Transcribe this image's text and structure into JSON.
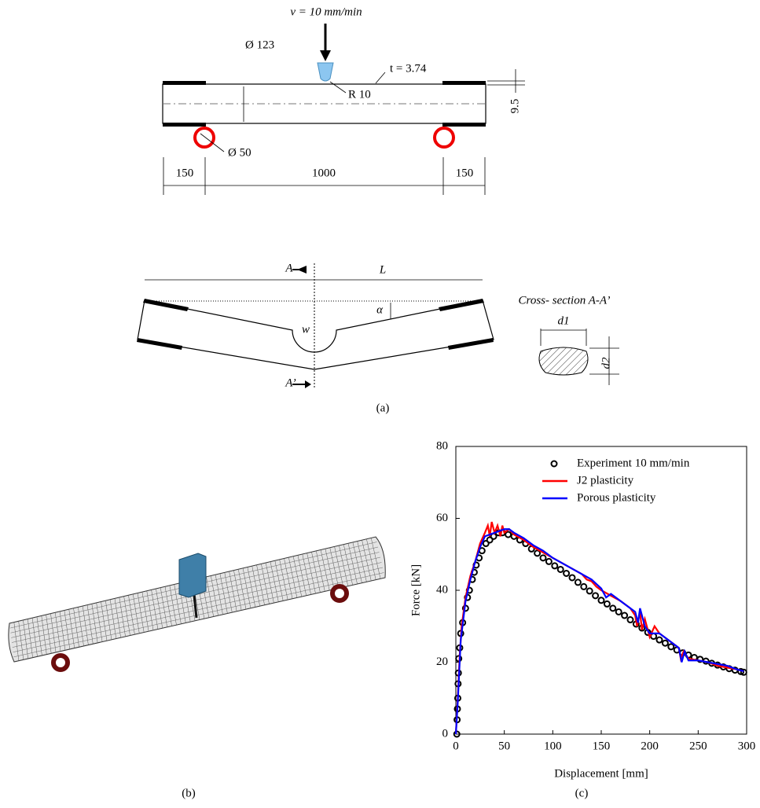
{
  "panel_a": {
    "velocity": "v = 10 mm/min",
    "outer_diameter": "Ø 123",
    "thickness": "t = 3.74",
    "indenter_radius": "R 10",
    "plate_height": "9.5",
    "support_diameter": "Ø 50",
    "left_overhang": "150",
    "span": "1000",
    "right_overhang": "150",
    "section_top": "A",
    "length": "L",
    "width": "w",
    "angle": "α",
    "section_bottom": "A’",
    "cross_section_title": "Cross- section A-A’",
    "d1": "d1",
    "d2": "d2",
    "label": "(a)"
  },
  "panel_b": {
    "label": "(b)"
  },
  "panel_c": {
    "label": "(c)"
  },
  "chart_data": {
    "type": "line",
    "xlabel": "Displacement [mm]",
    "ylabel": "Force [kN]",
    "xlim": [
      0,
      300
    ],
    "ylim": [
      0,
      80
    ],
    "xticks": [
      0,
      50,
      100,
      150,
      200,
      250,
      300
    ],
    "yticks": [
      0,
      20,
      40,
      60,
      80
    ],
    "legend": "upper right",
    "series": [
      {
        "name": "Experiment 10 mm/min",
        "style": "markers",
        "color": "#000000",
        "x": [
          1,
          1.3,
          1.6,
          2,
          2.3,
          2.6,
          3,
          4,
          5,
          7,
          10,
          12,
          14,
          17,
          19,
          21,
          24,
          27,
          31,
          35,
          39,
          44,
          48,
          54,
          60,
          66,
          72,
          78,
          84,
          90,
          96,
          102,
          108,
          114,
          120,
          126,
          132,
          138,
          144,
          150,
          156,
          162,
          168,
          174,
          180,
          186,
          192,
          198,
          204,
          210,
          216,
          222,
          228,
          234,
          240,
          246,
          252,
          258,
          264,
          270,
          276,
          282,
          288,
          294,
          297
        ],
        "values": [
          0,
          4,
          7,
          10,
          14,
          17,
          21,
          24,
          28,
          31,
          35,
          38,
          40,
          43,
          45,
          47,
          49,
          51,
          53,
          54,
          55,
          56,
          56,
          55.5,
          55,
          54,
          53,
          51.5,
          50.3,
          49,
          48,
          46.8,
          45.8,
          44.7,
          43.5,
          42.2,
          41,
          39.8,
          38.5,
          37.2,
          36.2,
          35,
          34,
          33,
          31.8,
          30.6,
          29.5,
          28.3,
          27.2,
          26.2,
          25.3,
          24.3,
          23.4,
          22.6,
          22,
          21.3,
          20.8,
          20.3,
          19.7,
          19.2,
          18.7,
          18.2,
          17.8,
          17.4,
          17.2
        ]
      },
      {
        "name": "J2 plasticity",
        "style": "line",
        "color": "#ff0000",
        "x": [
          0,
          2,
          4,
          6,
          10,
          15,
          20,
          25,
          30,
          33,
          35,
          37,
          40,
          43,
          46,
          48,
          50,
          55,
          60,
          70,
          80,
          90,
          100,
          110,
          120,
          130,
          135,
          140,
          145,
          150,
          160,
          170,
          180,
          185,
          187,
          190,
          192,
          195,
          200,
          205,
          210,
          220,
          230,
          232,
          235,
          240,
          250,
          260,
          270,
          280,
          290,
          297
        ],
        "values": [
          0,
          10,
          22,
          30,
          38,
          44,
          48,
          53,
          56,
          58,
          55,
          59,
          56,
          58,
          55,
          58,
          56,
          57,
          55.5,
          54,
          52,
          50.5,
          49,
          47.5,
          46,
          44.5,
          43,
          42.5,
          41,
          40,
          38.5,
          37,
          35,
          33,
          30,
          34,
          29,
          32,
          27,
          30,
          28,
          26,
          24,
          21,
          23,
          21,
          20.5,
          20,
          19,
          18.5,
          18,
          17.5
        ]
      },
      {
        "name": "Porous plasticity",
        "style": "line",
        "color": "#0000ff",
        "x": [
          0,
          2,
          5,
          10,
          15,
          20,
          25,
          30,
          40,
          50,
          55,
          60,
          70,
          80,
          90,
          100,
          110,
          120,
          130,
          140,
          150,
          155,
          160,
          170,
          180,
          185,
          188,
          190,
          195,
          200,
          210,
          220,
          230,
          233,
          236,
          240,
          250,
          260,
          270,
          280,
          290,
          297
        ],
        "values": [
          0,
          9,
          26,
          37,
          43,
          48,
          52,
          55,
          56,
          57,
          57,
          56,
          54.5,
          52.5,
          51,
          49,
          47.5,
          46,
          44.5,
          43,
          40.5,
          38,
          39,
          37,
          35,
          34,
          31,
          35,
          30,
          28,
          28,
          26,
          24,
          20,
          23,
          20.5,
          20.5,
          20,
          19.5,
          19,
          18,
          17.5
        ]
      }
    ]
  }
}
